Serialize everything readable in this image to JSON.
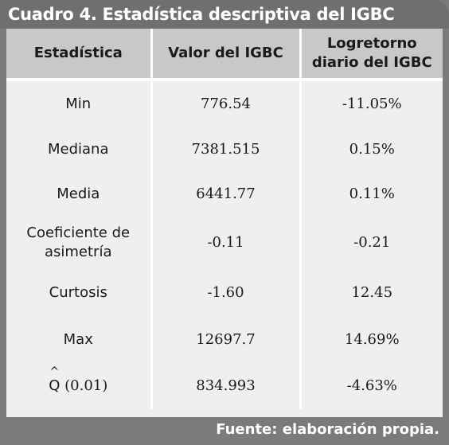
{
  "title": "Cuadro 4. Estadística descriptiva del IGBC",
  "headers": {
    "col1": "Estadística",
    "col2": "Valor del IGBC",
    "col3_line1": "Logretorno",
    "col3_line2": "diario del IGBC"
  },
  "rows": [
    {
      "stat": "Min",
      "valor": "776.54",
      "logretorno": "-11.05%"
    },
    {
      "stat": "Mediana",
      "valor": "7381.515",
      "logretorno": "0.15%"
    },
    {
      "stat": "Media",
      "valor": "6441.77",
      "logretorno": "0.11%"
    },
    {
      "stat_line1": "Coeficiente de",
      "stat_line2": "asimetría",
      "valor": "-0.11",
      "logretorno": "-0.21"
    },
    {
      "stat": "Curtosis",
      "valor": "-1.60",
      "logretorno": "12.45"
    },
    {
      "stat": "Max",
      "valor": "12697.7",
      "logretorno": "14.69%"
    },
    {
      "stat_symbol": "Q",
      "stat_hat": "^",
      "stat_arg": "(0.01)",
      "valor": "834.993",
      "logretorno": "-4.63%"
    }
  ],
  "footer": "Fuente: elaboración propia.",
  "colors": {
    "frame": "#7b7b7b",
    "header_bg": "#c8c8c8",
    "body_bg": "#efefef",
    "title_text": "#ffffff"
  }
}
